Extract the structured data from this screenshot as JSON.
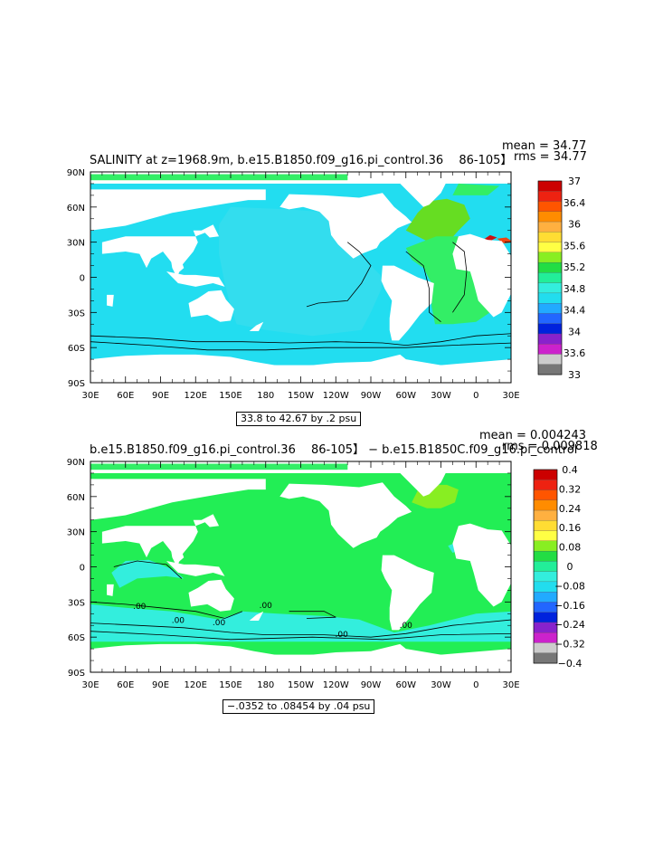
{
  "chart_data": [
    {
      "type": "heatmap",
      "title": "SALINITY at z=1968.9m, b.e15.B1850.f09_g16.pi_control.36 　86-105】",
      "stats": {
        "mean": "mean = 34.77",
        "rms": "rms = 34.77"
      },
      "info": "33.8 to 42.67 by .2 psu",
      "x_ticks": [
        "30E",
        "60E",
        "90E",
        "120E",
        "150E",
        "180",
        "150W",
        "120W",
        "90W",
        "60W",
        "30W",
        "0",
        "30E"
      ],
      "y_ticks": [
        "90N",
        "60N",
        "30N",
        "0",
        "30S",
        "60S",
        "90S"
      ],
      "xlim": [
        30,
        390
      ],
      "ylim": [
        -90,
        90
      ],
      "colorbar": {
        "labels": [
          "37",
          "36.4",
          "36",
          "35.6",
          "35.2",
          "34.8",
          "34.4",
          "34",
          "33.6",
          "33"
        ],
        "colors": [
          "#cc0000",
          "#ee2211",
          "#ff5500",
          "#ff8c00",
          "#ffb040",
          "#ffdd33",
          "#ffff44",
          "#88ee22",
          "#22dd44",
          "#22ee99",
          "#33eedd",
          "#22ddee",
          "#22aaff",
          "#2266ff",
          "#0022dd",
          "#8822cc",
          "#cc22cc",
          "#cccccc",
          "#777777"
        ]
      },
      "ocean_color": "#22ddf0",
      "legend_side": "right"
    },
    {
      "type": "heatmap",
      "title": "b.e15.B1850.f09_g16.pi_control.36 　86-105】 − b.e15.B1850C.f09_g16.pi_control",
      "stats": {
        "mean": "mean = 0.004243",
        "rms": "rms = 0.009818"
      },
      "info": "−.0352 to .08454 by .04 psu",
      "contour_labels": [
        ".00",
        ".00",
        ".00",
        ".00",
        ".00",
        ".00"
      ],
      "x_ticks": [
        "30E",
        "60E",
        "90E",
        "120E",
        "150E",
        "180",
        "150W",
        "120W",
        "90W",
        "60W",
        "30W",
        "0",
        "30E"
      ],
      "y_ticks": [
        "90N",
        "60N",
        "30N",
        "0",
        "30S",
        "60S",
        "90S"
      ],
      "xlim": [
        30,
        390
      ],
      "ylim": [
        -90,
        90
      ],
      "colorbar": {
        "labels": [
          "0.4",
          "0.32",
          "0.24",
          "0.16",
          "0.08",
          "0",
          "−0.08",
          "−0.16",
          "−0.24",
          "−0.32",
          "−0.4"
        ],
        "colors": [
          "#cc0000",
          "#ee2211",
          "#ff5500",
          "#ff8c00",
          "#ffb040",
          "#ffdd33",
          "#ffff44",
          "#88ee22",
          "#22dd44",
          "#22ee99",
          "#33eedd",
          "#22ddee",
          "#22aaff",
          "#2266ff",
          "#0022dd",
          "#8822cc",
          "#cc22cc",
          "#cccccc",
          "#777777"
        ]
      },
      "ocean_color": "#22ee55",
      "legend_side": "right"
    }
  ]
}
